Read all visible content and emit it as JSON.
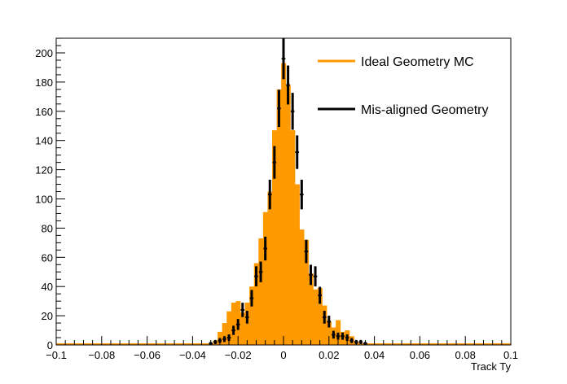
{
  "chart_data": {
    "type": "bar",
    "title": "",
    "xlabel": "Track Ty",
    "ylabel": "",
    "xlim": [
      -0.1,
      0.1
    ],
    "ylim": [
      0,
      210
    ],
    "grid": false,
    "legend_position": "top-right",
    "x_ticks": [
      -0.1,
      -0.08,
      -0.06,
      -0.04,
      -0.02,
      0,
      0.02,
      0.04,
      0.06,
      0.08,
      0.1
    ],
    "x_tick_labels": [
      "−0.1",
      "−0.08",
      "−0.06",
      "−0.04",
      "−0.02",
      "0",
      "0.02",
      "0.04",
      "0.06",
      "0.08",
      "0.1"
    ],
    "y_ticks": [
      0,
      20,
      40,
      60,
      80,
      100,
      120,
      140,
      160,
      180,
      200
    ],
    "y_tick_labels": [
      "0",
      "20",
      "40",
      "60",
      "80",
      "100",
      "120",
      "140",
      "160",
      "180",
      "200"
    ],
    "bin_width": 0.002,
    "series": [
      {
        "name": "Ideal Geometry MC",
        "kind": "histogram",
        "color": "#ff9900",
        "bins": [
          {
            "x": -0.032,
            "y": 1
          },
          {
            "x": -0.03,
            "y": 3
          },
          {
            "x": -0.028,
            "y": 9
          },
          {
            "x": -0.026,
            "y": 15
          },
          {
            "x": -0.024,
            "y": 23
          },
          {
            "x": -0.022,
            "y": 29
          },
          {
            "x": -0.02,
            "y": 30
          },
          {
            "x": -0.018,
            "y": 22
          },
          {
            "x": -0.016,
            "y": 29
          },
          {
            "x": -0.014,
            "y": 40
          },
          {
            "x": -0.012,
            "y": 56
          },
          {
            "x": -0.01,
            "y": 73
          },
          {
            "x": -0.008,
            "y": 91
          },
          {
            "x": -0.006,
            "y": 105
          },
          {
            "x": -0.004,
            "y": 147
          },
          {
            "x": -0.002,
            "y": 175
          },
          {
            "x": 0.0,
            "y": 193
          },
          {
            "x": 0.002,
            "y": 178
          },
          {
            "x": 0.004,
            "y": 147
          },
          {
            "x": 0.006,
            "y": 110
          },
          {
            "x": 0.008,
            "y": 79
          },
          {
            "x": 0.01,
            "y": 72
          },
          {
            "x": 0.012,
            "y": 49
          },
          {
            "x": 0.014,
            "y": 38
          },
          {
            "x": 0.016,
            "y": 39
          },
          {
            "x": 0.018,
            "y": 27
          },
          {
            "x": 0.02,
            "y": 16
          },
          {
            "x": 0.022,
            "y": 12
          },
          {
            "x": 0.024,
            "y": 17
          },
          {
            "x": 0.026,
            "y": 9
          },
          {
            "x": 0.028,
            "y": 10
          },
          {
            "x": 0.03,
            "y": 6
          },
          {
            "x": 0.032,
            "y": 2
          },
          {
            "x": 0.034,
            "y": 1
          },
          {
            "x": 0.036,
            "y": 1
          }
        ]
      },
      {
        "name": "Mis-aligned Geometry",
        "kind": "points-with-errors",
        "color": "#000000",
        "points": [
          {
            "x": -0.032,
            "y": 1
          },
          {
            "x": -0.03,
            "y": 2
          },
          {
            "x": -0.028,
            "y": 3
          },
          {
            "x": -0.026,
            "y": 4
          },
          {
            "x": -0.024,
            "y": 5
          },
          {
            "x": -0.022,
            "y": 10
          },
          {
            "x": -0.02,
            "y": 14
          },
          {
            "x": -0.018,
            "y": 24
          },
          {
            "x": -0.016,
            "y": 19
          },
          {
            "x": -0.014,
            "y": 32
          },
          {
            "x": -0.012,
            "y": 47
          },
          {
            "x": -0.01,
            "y": 50
          },
          {
            "x": -0.008,
            "y": 66
          },
          {
            "x": -0.006,
            "y": 103
          },
          {
            "x": -0.004,
            "y": 125
          },
          {
            "x": -0.002,
            "y": 162
          },
          {
            "x": 0.0,
            "y": 196
          },
          {
            "x": 0.002,
            "y": 178
          },
          {
            "x": 0.004,
            "y": 160
          },
          {
            "x": 0.006,
            "y": 132
          },
          {
            "x": 0.008,
            "y": 103
          },
          {
            "x": 0.01,
            "y": 64
          },
          {
            "x": 0.012,
            "y": 48
          },
          {
            "x": 0.014,
            "y": 47
          },
          {
            "x": 0.016,
            "y": 34
          },
          {
            "x": 0.018,
            "y": 19
          },
          {
            "x": 0.02,
            "y": 16
          },
          {
            "x": 0.022,
            "y": 7
          },
          {
            "x": 0.024,
            "y": 6
          },
          {
            "x": 0.026,
            "y": 6
          },
          {
            "x": 0.028,
            "y": 5
          },
          {
            "x": 0.03,
            "y": 3
          },
          {
            "x": 0.032,
            "y": 2
          },
          {
            "x": 0.034,
            "y": 2
          },
          {
            "x": 0.036,
            "y": 1
          }
        ]
      }
    ]
  }
}
